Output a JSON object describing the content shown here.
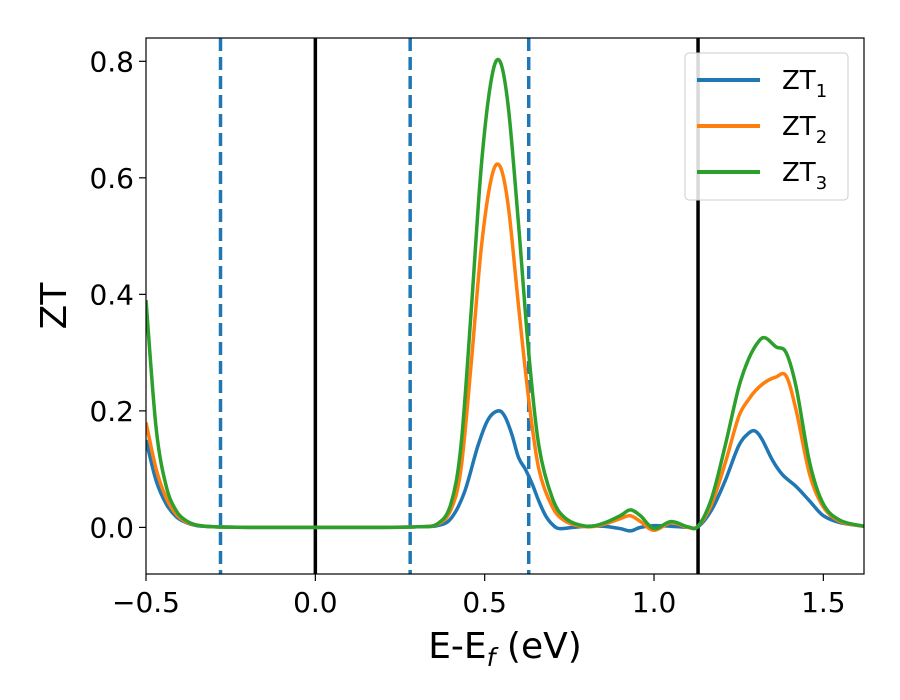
{
  "chart_data": {
    "type": "line",
    "xlabel": "E-E",
    "xlabel_sub": "f",
    "xlabel_unit": " (eV)",
    "ylabel": "ZT",
    "xlim": [
      -0.5,
      1.62
    ],
    "ylim": [
      -0.08,
      0.84
    ],
    "xticks": [
      -0.5,
      0.0,
      0.5,
      1.0,
      1.5
    ],
    "xtick_labels": [
      "−0.5",
      "0.0",
      "0.5",
      "1.0",
      "1.5"
    ],
    "yticks": [
      0.0,
      0.2,
      0.4,
      0.6,
      0.8
    ],
    "ytick_labels": [
      "0.0",
      "0.2",
      "0.4",
      "0.6",
      "0.8"
    ],
    "grid": false,
    "legend_position": "top-right",
    "vertical_lines": [
      {
        "x": -0.28,
        "style": "dashed",
        "color": "#1f77b4"
      },
      {
        "x": 0.0,
        "style": "solid",
        "color": "#000000"
      },
      {
        "x": 0.28,
        "style": "dashed",
        "color": "#1f77b4"
      },
      {
        "x": 0.63,
        "style": "dashed",
        "color": "#1f77b4"
      },
      {
        "x": 1.13,
        "style": "solid",
        "color": "#000000"
      }
    ],
    "series": [
      {
        "name": "ZT",
        "name_sub": "1",
        "color": "#1f77b4",
        "x": [
          -0.5,
          -0.47,
          -0.44,
          -0.41,
          -0.38,
          -0.35,
          -0.3,
          -0.2,
          0.0,
          0.2,
          0.3,
          0.36,
          0.4,
          0.44,
          0.48,
          0.51,
          0.54,
          0.56,
          0.58,
          0.6,
          0.62,
          0.64,
          0.66,
          0.68,
          0.7,
          0.72,
          0.76,
          0.8,
          0.85,
          0.9,
          0.93,
          0.96,
          1.0,
          1.05,
          1.1,
          1.13,
          1.17,
          1.21,
          1.25,
          1.28,
          1.3,
          1.32,
          1.35,
          1.38,
          1.42,
          1.46,
          1.5,
          1.55,
          1.62
        ],
        "y": [
          0.15,
          0.08,
          0.04,
          0.018,
          0.008,
          0.003,
          0.001,
          0.0,
          0.0,
          0.0,
          0.001,
          0.003,
          0.015,
          0.06,
          0.14,
          0.185,
          0.2,
          0.19,
          0.16,
          0.12,
          0.1,
          0.075,
          0.045,
          0.02,
          0.005,
          -0.002,
          0.0,
          0.002,
          0.002,
          -0.002,
          -0.006,
          0.0,
          0.003,
          0.002,
          0.0,
          0.001,
          0.03,
          0.08,
          0.14,
          0.162,
          0.165,
          0.15,
          0.115,
          0.09,
          0.07,
          0.045,
          0.02,
          0.008,
          0.002
        ]
      },
      {
        "name": "ZT",
        "name_sub": "2",
        "color": "#ff7f0e",
        "x": [
          -0.5,
          -0.47,
          -0.44,
          -0.41,
          -0.38,
          -0.35,
          -0.3,
          -0.2,
          0.0,
          0.2,
          0.3,
          0.36,
          0.4,
          0.43,
          0.46,
          0.49,
          0.52,
          0.545,
          0.57,
          0.6,
          0.63,
          0.66,
          0.7,
          0.74,
          0.8,
          0.85,
          0.9,
          0.93,
          0.96,
          1.0,
          1.05,
          1.1,
          1.13,
          1.17,
          1.21,
          1.25,
          1.28,
          1.3,
          1.33,
          1.36,
          1.39,
          1.42,
          1.46,
          1.5,
          1.55,
          1.62
        ],
        "y": [
          0.18,
          0.1,
          0.05,
          0.022,
          0.009,
          0.004,
          0.001,
          0.0,
          0.0,
          0.0,
          0.001,
          0.005,
          0.03,
          0.1,
          0.28,
          0.48,
          0.6,
          0.62,
          0.55,
          0.38,
          0.22,
          0.1,
          0.035,
          0.01,
          0.001,
          0.005,
          0.015,
          0.02,
          0.01,
          -0.005,
          0.008,
          0.0,
          0.002,
          0.04,
          0.11,
          0.19,
          0.22,
          0.235,
          0.25,
          0.258,
          0.26,
          0.2,
          0.09,
          0.035,
          0.01,
          0.002
        ]
      },
      {
        "name": "ZT",
        "name_sub": "3",
        "color": "#2ca02c",
        "x": [
          -0.5,
          -0.47,
          -0.44,
          -0.41,
          -0.38,
          -0.35,
          -0.3,
          -0.2,
          0.0,
          0.2,
          0.3,
          0.36,
          0.4,
          0.43,
          0.46,
          0.49,
          0.52,
          0.545,
          0.57,
          0.6,
          0.63,
          0.66,
          0.7,
          0.74,
          0.8,
          0.85,
          0.9,
          0.93,
          0.96,
          1.0,
          1.05,
          1.1,
          1.13,
          1.17,
          1.21,
          1.25,
          1.28,
          1.31,
          1.33,
          1.36,
          1.39,
          1.42,
          1.46,
          1.5,
          1.55,
          1.62
        ],
        "y": [
          0.39,
          0.17,
          0.07,
          0.028,
          0.011,
          0.004,
          0.001,
          0.0,
          0.0,
          0.0,
          0.001,
          0.006,
          0.04,
          0.14,
          0.37,
          0.62,
          0.77,
          0.8,
          0.72,
          0.52,
          0.3,
          0.14,
          0.05,
          0.015,
          0.002,
          0.007,
          0.02,
          0.03,
          0.02,
          -0.002,
          0.01,
          0.001,
          0.002,
          0.05,
          0.14,
          0.24,
          0.29,
          0.32,
          0.325,
          0.31,
          0.3,
          0.24,
          0.11,
          0.04,
          0.012,
          0.002
        ]
      }
    ]
  }
}
